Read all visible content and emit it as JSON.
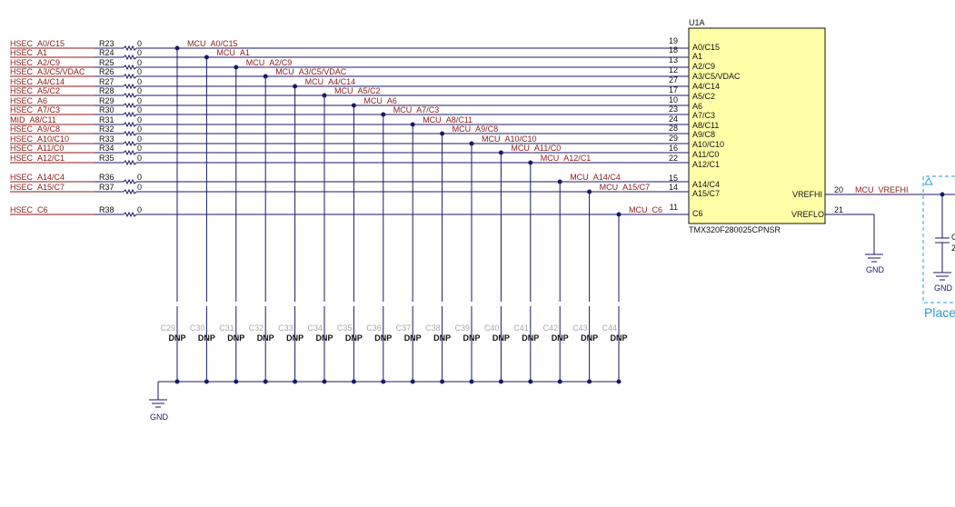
{
  "rows": [
    {
      "net": "HSEC_A0/C15",
      "ref": "R23",
      "val": "0",
      "mcu": "MCU_A0/C15",
      "pin": "19",
      "pinName": "A0/C15",
      "cap": "C29"
    },
    {
      "net": "HSEC_A1",
      "ref": "R24",
      "val": "0",
      "mcu": "MCU_A1",
      "pin": "18",
      "pinName": "A1",
      "cap": "C30"
    },
    {
      "net": "HSEC_A2/C9",
      "ref": "R25",
      "val": "0",
      "mcu": "MCU_A2/C9",
      "pin": "13",
      "pinName": "A2/C9",
      "cap": "C31"
    },
    {
      "net": "HSEC_A3/C5/VDAC",
      "ref": "R26",
      "val": "0",
      "mcu": "MCU_A3/C5/VDAC",
      "pin": "12",
      "pinName": "A3/C5/VDAC",
      "cap": "C32"
    },
    {
      "net": "HSEC_A4/C14",
      "ref": "R27",
      "val": "0",
      "mcu": "MCU_A4/C14",
      "pin": "27",
      "pinName": "A4/C14",
      "cap": "C33"
    },
    {
      "net": "HSEC_A5/C2",
      "ref": "R28",
      "val": "0",
      "mcu": "MCU_A5/C2",
      "pin": "17",
      "pinName": "A5/C2",
      "cap": "C34"
    },
    {
      "net": "HSEC_A6",
      "ref": "R29",
      "val": "0",
      "mcu": "MCU_A6",
      "pin": "10",
      "pinName": "A6",
      "cap": "C35"
    },
    {
      "net": "HSEC_A7/C3",
      "ref": "R30",
      "val": "0",
      "mcu": "MCU_A7/C3",
      "pin": "23",
      "pinName": "A7/C3",
      "cap": "C36"
    },
    {
      "net": "MID_A8/C11",
      "ref": "R31",
      "val": "0",
      "mcu": "MCU_A8/C11",
      "pin": "24",
      "pinName": "A8/C11",
      "cap": "C37"
    },
    {
      "net": "HSEC_A9/C8",
      "ref": "R32",
      "val": "0",
      "mcu": "MCU_A9/C8",
      "pin": "28",
      "pinName": "A9/C8",
      "cap": "C38"
    },
    {
      "net": "HSEC_A10/C10",
      "ref": "R33",
      "val": "0",
      "mcu": "MCU_A10/C10",
      "pin": "29",
      "pinName": "A10/C10",
      "cap": "C39"
    },
    {
      "net": "HSEC_A11/C0",
      "ref": "R34",
      "val": "0",
      "mcu": "MCU_A11/C0",
      "pin": "16",
      "pinName": "A11/C0",
      "cap": "C40"
    },
    {
      "net": "HSEC_A12/C1",
      "ref": "R35",
      "val": "0",
      "mcu": "MCU_A12/C1",
      "pin": "22",
      "pinName": "A12/C1",
      "cap": "C41"
    },
    {
      "net": "HSEC_A14/C4",
      "ref": "R36",
      "val": "0",
      "mcu": "MCU_A14/C4",
      "pin": "15",
      "pinName": "A14/C4",
      "cap": "C42"
    },
    {
      "net": "HSEC_A15/C7",
      "ref": "R37",
      "val": "0",
      "mcu": "MCU_A15/C7",
      "pin": "14",
      "pinName": "A15/C7",
      "cap": "C43"
    },
    {
      "net": "HSEC_C6",
      "ref": "R38",
      "val": "0",
      "mcu": "MCU_C6",
      "pin": "11",
      "pinName": "C6",
      "cap": "C44"
    }
  ],
  "ic": {
    "ref": "U1A",
    "part": "TMX320F280025CPNSR",
    "vrefhi": {
      "name": "VREFHI",
      "pin": "20",
      "net": "MCU_VREFHI"
    },
    "vreflo": {
      "name": "VREFLO",
      "pin": "21"
    }
  },
  "cap_value": "DNP",
  "gnd_label": "GND",
  "right_partial": {
    "cap_ref": "C",
    "cap_val": "2",
    "note": "Place"
  },
  "colors": {
    "net": "#8b1a1a",
    "wire": "#1a1a66",
    "ic_fill": "#ffffa8",
    "note": "#2a9bd5"
  }
}
